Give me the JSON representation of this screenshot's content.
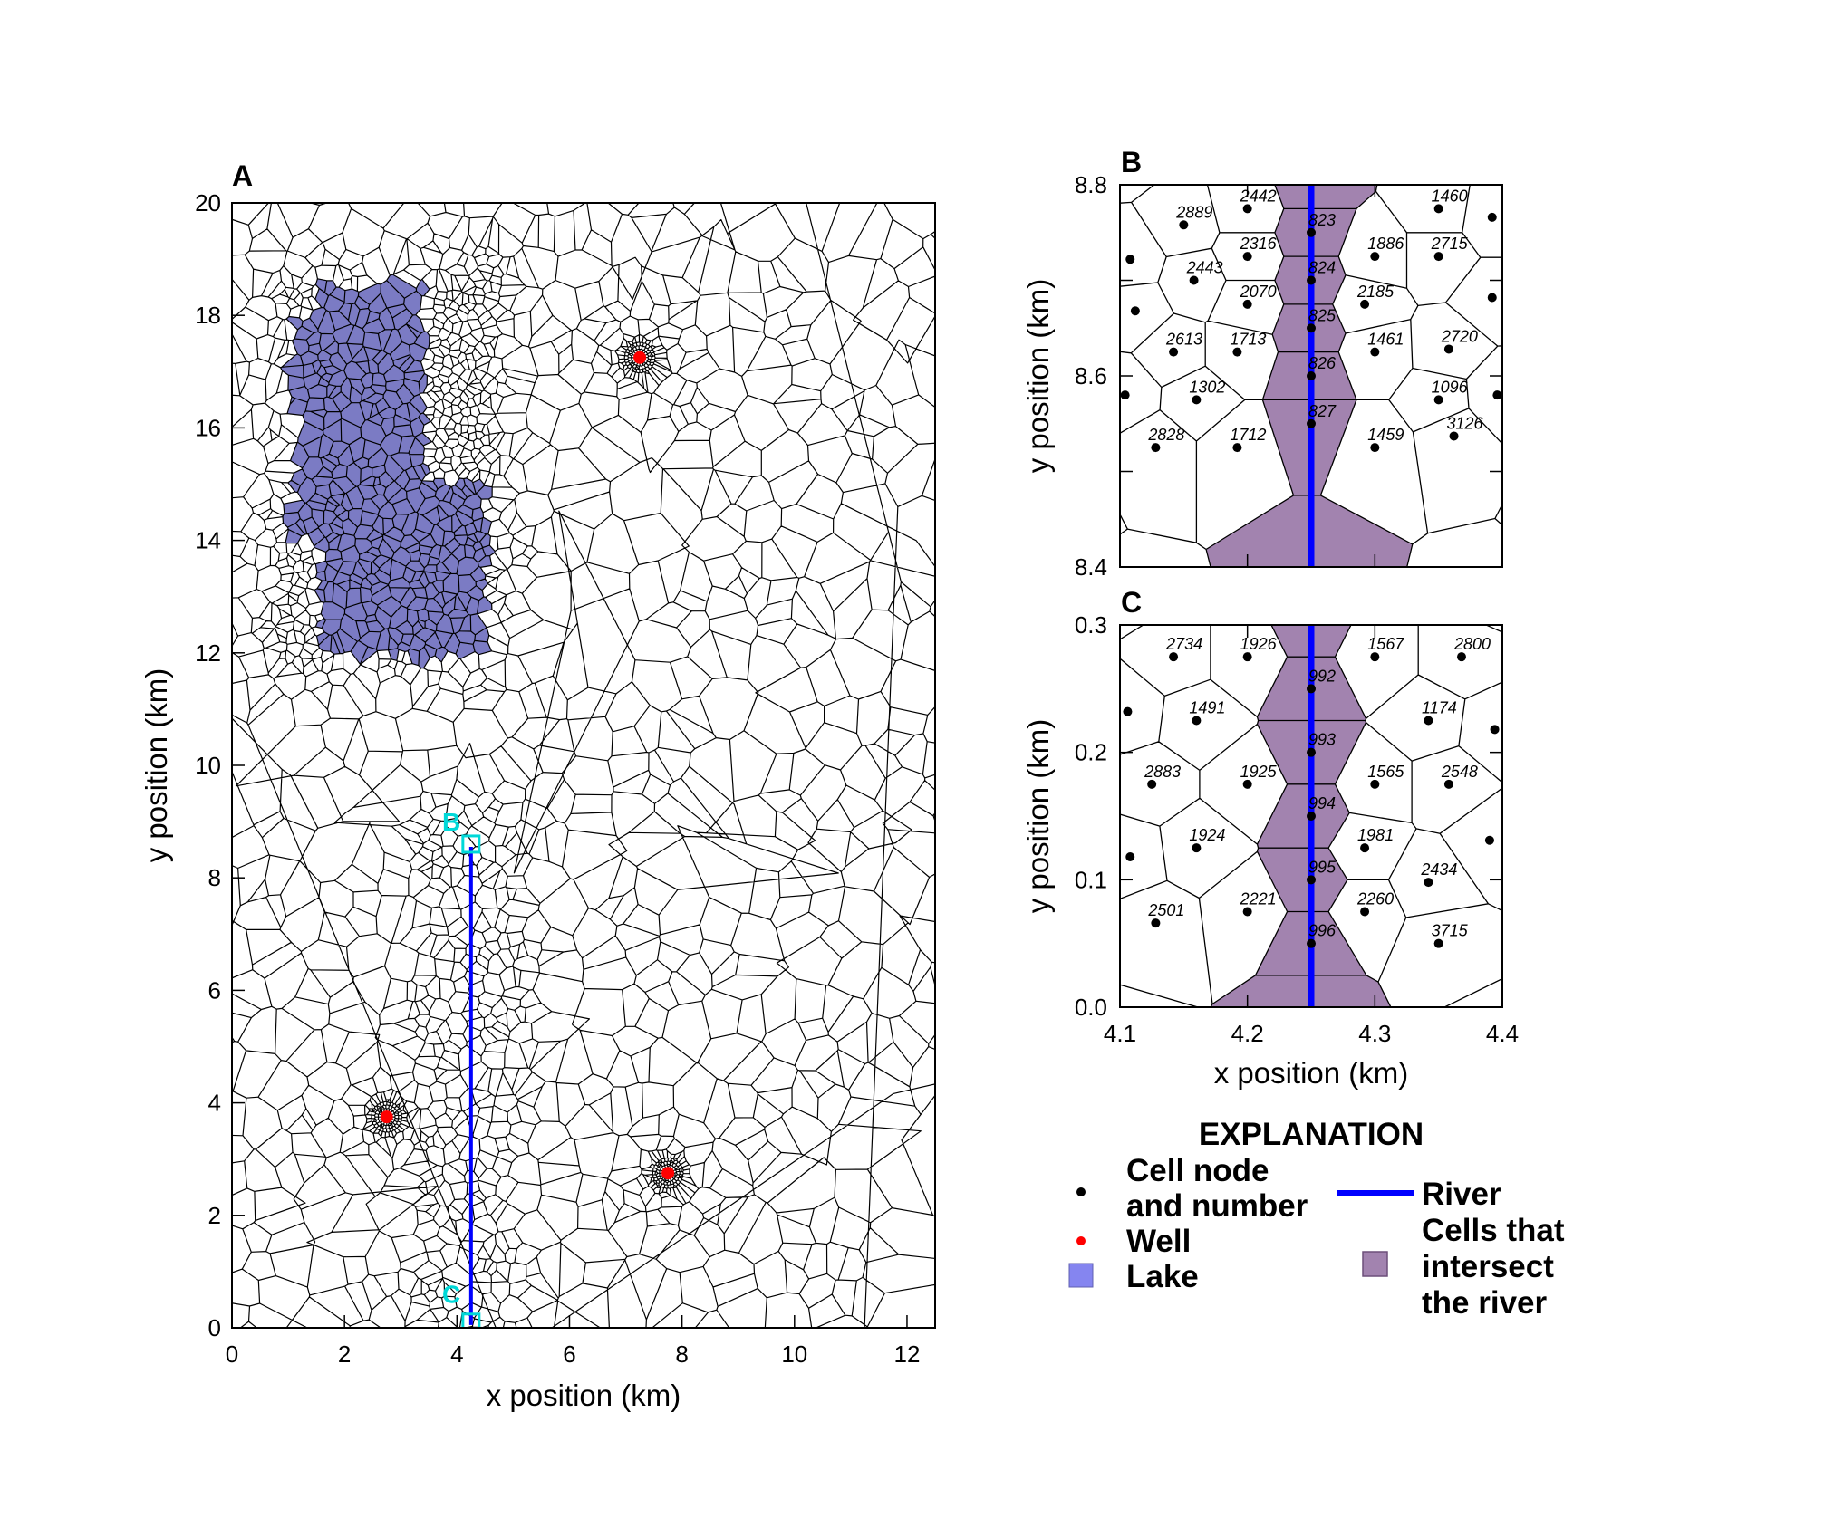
{
  "chart_data": [
    {
      "type": "map",
      "panel_label": "A",
      "xlabel": "x position (km)",
      "ylabel": "y position (km)",
      "xlim": [
        0,
        12.5
      ],
      "ylim": [
        0,
        20
      ],
      "xticks": [
        0,
        2,
        4,
        6,
        8,
        10,
        12
      ],
      "yticks": [
        0,
        2,
        4,
        6,
        8,
        10,
        12,
        14,
        16,
        18,
        20
      ],
      "lake_polygon": [
        [
          1.5,
          18.55
        ],
        [
          3.48,
          18.55
        ],
        [
          3.48,
          15.1
        ],
        [
          4.55,
          15.1
        ],
        [
          4.55,
          11.95
        ],
        [
          1.55,
          11.95
        ],
        [
          1.55,
          13.95
        ],
        [
          1.05,
          13.95
        ],
        [
          1.05,
          15.05
        ],
        [
          1.05,
          18.0
        ],
        [
          1.5,
          18.0
        ]
      ],
      "fine_zone": {
        "x": [
          3.35,
          5.1
        ],
        "y": [
          0,
          9.65
        ]
      },
      "wells": [
        {
          "x": 7.25,
          "y": 17.25
        },
        {
          "x": 2.75,
          "y": 3.75
        },
        {
          "x": 7.75,
          "y": 2.75
        }
      ],
      "river": {
        "x": 4.25,
        "y": [
          0.05,
          8.55
        ]
      },
      "inset_markers": [
        {
          "label": "B",
          "x": 4.25,
          "y": 8.6,
          "label_x": 3.9,
          "label_y": 9.0
        },
        {
          "label": "C",
          "x": 4.25,
          "y": 0.1,
          "label_x": 3.9,
          "label_y": 0.6
        }
      ],
      "colors": {
        "lake": "#7b7bc4",
        "well": "#ff0000",
        "river": "#0000ff",
        "marker": "#00d8d8"
      }
    },
    {
      "type": "map",
      "panel_label": "B",
      "xlabel": "",
      "ylabel": "y position (km)",
      "xlim": [
        4.1,
        4.4
      ],
      "ylim": [
        8.4,
        8.8
      ],
      "yticks": [
        "8.4",
        "8.5",
        "8.6",
        "8.7",
        "8.8"
      ],
      "yticks_labeled": [
        "8.4",
        "8.6",
        "8.8"
      ],
      "river_x": 4.25,
      "river_cells": [
        823,
        824,
        825,
        826,
        827
      ],
      "nodes": [
        {
          "n": "2442",
          "x": 4.2,
          "y": 8.775
        },
        {
          "n": "2889",
          "x": 4.15,
          "y": 8.758
        },
        {
          "n": "1460",
          "x": 4.35,
          "y": 8.775
        },
        {
          "n": "823",
          "x": 4.25,
          "y": 8.75
        },
        {
          "n": "2316",
          "x": 4.2,
          "y": 8.725
        },
        {
          "n": "1886",
          "x": 4.3,
          "y": 8.725
        },
        {
          "n": "2715",
          "x": 4.35,
          "y": 8.725
        },
        {
          "n": "2443",
          "x": 4.158,
          "y": 8.7
        },
        {
          "n": "824",
          "x": 4.25,
          "y": 8.7
        },
        {
          "n": "2070",
          "x": 4.2,
          "y": 8.675
        },
        {
          "n": "2185",
          "x": 4.292,
          "y": 8.675
        },
        {
          "n": "825",
          "x": 4.25,
          "y": 8.65
        },
        {
          "n": "2613",
          "x": 4.142,
          "y": 8.625
        },
        {
          "n": "1713",
          "x": 4.192,
          "y": 8.625
        },
        {
          "n": "1461",
          "x": 4.3,
          "y": 8.625
        },
        {
          "n": "2720",
          "x": 4.358,
          "y": 8.628
        },
        {
          "n": "826",
          "x": 4.25,
          "y": 8.6
        },
        {
          "n": "1302",
          "x": 4.16,
          "y": 8.575
        },
        {
          "n": "1096",
          "x": 4.35,
          "y": 8.575
        },
        {
          "n": "827",
          "x": 4.25,
          "y": 8.55
        },
        {
          "n": "2828",
          "x": 4.128,
          "y": 8.525
        },
        {
          "n": "1712",
          "x": 4.192,
          "y": 8.525
        },
        {
          "n": "1459",
          "x": 4.3,
          "y": 8.525
        },
        {
          "n": "3126",
          "x": 4.362,
          "y": 8.537
        }
      ],
      "unlabeled_nodes": [
        [
          4.108,
          8.722
        ],
        [
          4.112,
          8.668
        ],
        [
          4.104,
          8.58
        ],
        [
          4.392,
          8.766
        ],
        [
          4.392,
          8.682
        ],
        [
          4.396,
          8.58
        ]
      ]
    },
    {
      "type": "map",
      "panel_label": "C",
      "xlabel": "x position (km)",
      "ylabel": "y position (km)",
      "xlim": [
        4.1,
        4.4
      ],
      "ylim": [
        0.0,
        0.3
      ],
      "xticks": [
        "4.1",
        "4.2",
        "4.3",
        "4.4"
      ],
      "yticks": [
        "0.0",
        "0.1",
        "0.2",
        "0.3"
      ],
      "river_x": 4.25,
      "river_cells": [
        992,
        993,
        994,
        995,
        996
      ],
      "nodes": [
        {
          "n": "2734",
          "x": 4.142,
          "y": 0.275
        },
        {
          "n": "1926",
          "x": 4.2,
          "y": 0.275
        },
        {
          "n": "1567",
          "x": 4.3,
          "y": 0.275
        },
        {
          "n": "2800",
          "x": 4.368,
          "y": 0.275
        },
        {
          "n": "992",
          "x": 4.25,
          "y": 0.25
        },
        {
          "n": "1491",
          "x": 4.16,
          "y": 0.225
        },
        {
          "n": "1174",
          "x": 4.342,
          "y": 0.225
        },
        {
          "n": "993",
          "x": 4.25,
          "y": 0.2
        },
        {
          "n": "2883",
          "x": 4.125,
          "y": 0.175
        },
        {
          "n": "1925",
          "x": 4.2,
          "y": 0.175
        },
        {
          "n": "1565",
          "x": 4.3,
          "y": 0.175
        },
        {
          "n": "2548",
          "x": 4.358,
          "y": 0.175
        },
        {
          "n": "994",
          "x": 4.25,
          "y": 0.15
        },
        {
          "n": "1924",
          "x": 4.16,
          "y": 0.125
        },
        {
          "n": "1981",
          "x": 4.292,
          "y": 0.125
        },
        {
          "n": "995",
          "x": 4.25,
          "y": 0.1
        },
        {
          "n": "2434",
          "x": 4.342,
          "y": 0.098
        },
        {
          "n": "2221",
          "x": 4.2,
          "y": 0.075
        },
        {
          "n": "2260",
          "x": 4.292,
          "y": 0.075
        },
        {
          "n": "2501",
          "x": 4.128,
          "y": 0.066
        },
        {
          "n": "996",
          "x": 4.25,
          "y": 0.05
        },
        {
          "n": "3715",
          "x": 4.35,
          "y": 0.05
        }
      ],
      "unlabeled_nodes": [
        [
          4.106,
          0.232
        ],
        [
          4.108,
          0.118
        ],
        [
          4.394,
          0.218
        ],
        [
          4.39,
          0.131
        ]
      ]
    }
  ],
  "legend": {
    "title": "EXPLANATION",
    "items": [
      {
        "symbol": "black-dot",
        "lines": [
          "Cell node",
          "and number"
        ]
      },
      {
        "symbol": "red-dot",
        "lines": [
          "Well"
        ]
      },
      {
        "symbol": "lake-square",
        "lines": [
          "Lake"
        ]
      },
      {
        "symbol": "blue-line",
        "lines": [
          "River"
        ]
      },
      {
        "symbol": "purple-square",
        "lines": [
          "Cells that",
          "intersect",
          "the river"
        ]
      }
    ],
    "colors": {
      "node": "#000000",
      "well": "#ff0000",
      "lake": "#8585f0",
      "river": "#0000ff",
      "river_cells": "#a283af"
    }
  }
}
